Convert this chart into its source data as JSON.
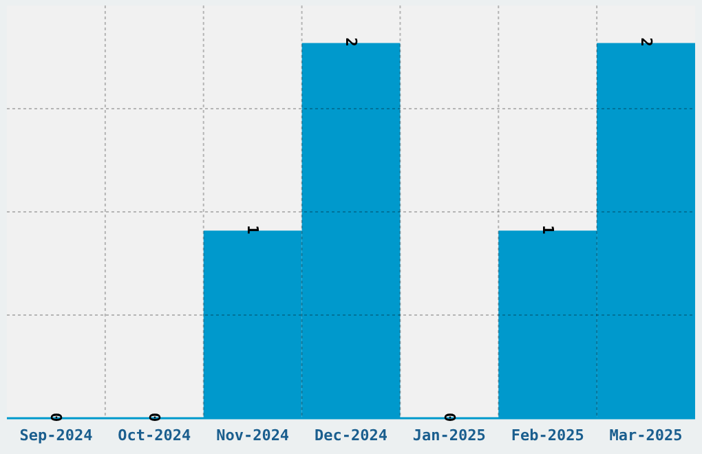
{
  "chart_data": {
    "type": "bar",
    "categories": [
      "Sep-2024",
      "Oct-2024",
      "Nov-2024",
      "Dec-2024",
      "Jan-2025",
      "Feb-2025",
      "Mar-2025"
    ],
    "values": [
      0,
      0,
      1,
      2,
      0,
      1,
      2
    ],
    "color": "#0099cc",
    "ylim": [
      0,
      2.2
    ],
    "yticks": [
      {
        "value": 0.55,
        "label": null
      },
      {
        "value": 1.1,
        "label": null
      },
      {
        "value": 1.65,
        "label": null
      }
    ],
    "tick_labels": "x",
    "grid": true,
    "data_labels": true
  }
}
